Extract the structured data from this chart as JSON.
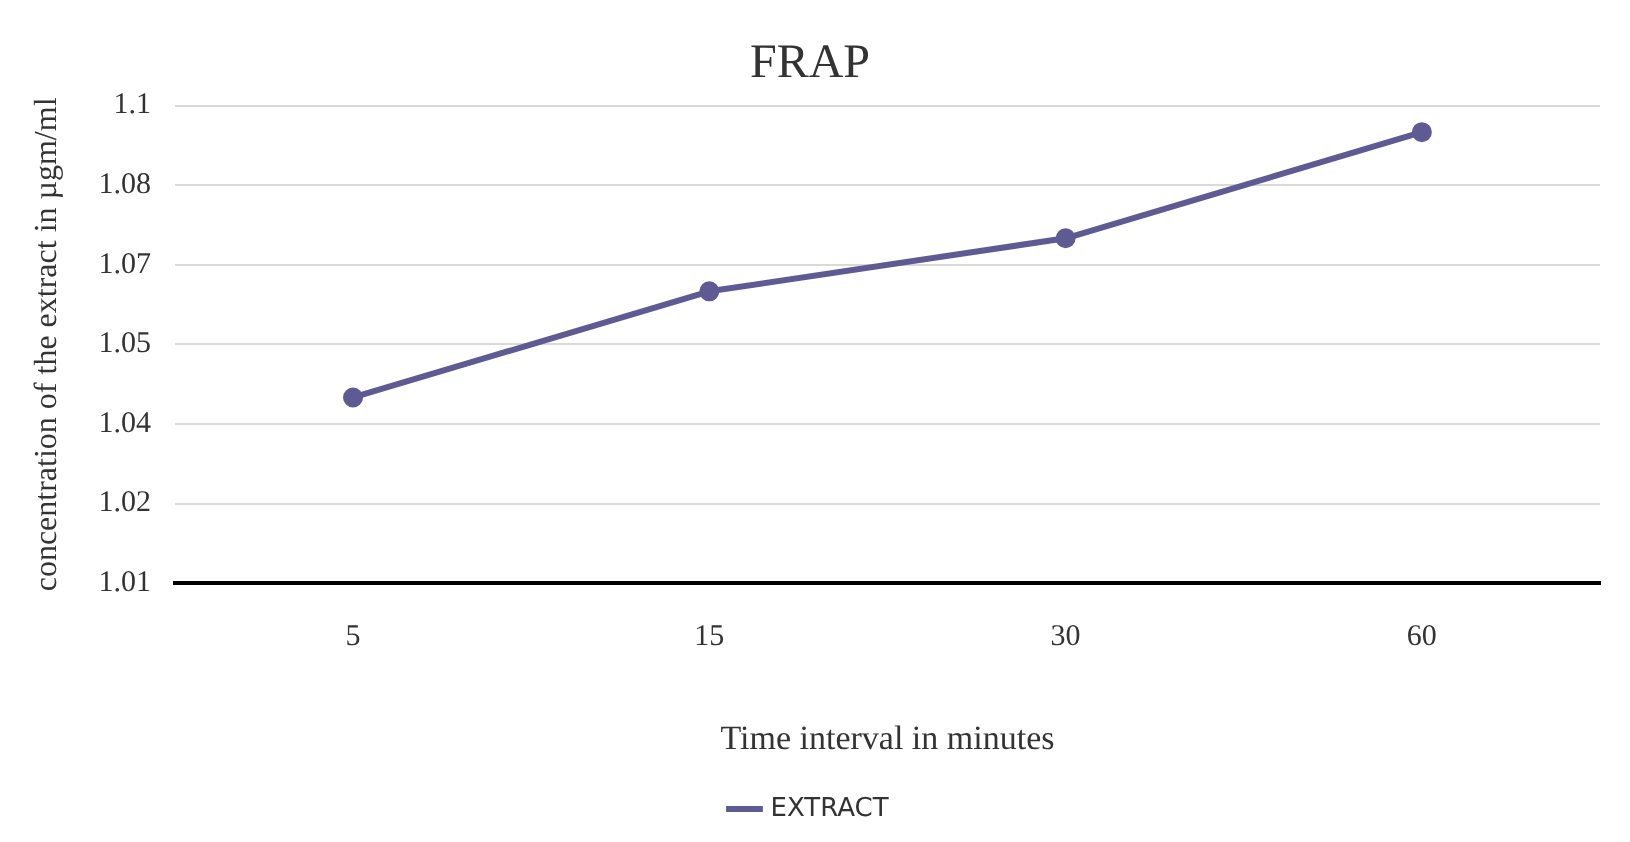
{
  "chart_data": {
    "type": "line",
    "title": "FRAP",
    "xlabel": "Time interval in minutes",
    "ylabel": "concentration of the extract in µgm/ml",
    "categories": [
      "5",
      "15",
      "30",
      "60"
    ],
    "series": [
      {
        "name": "EXTRACT",
        "color": "#5e5b94",
        "values": [
          1.045,
          1.065,
          1.075,
          1.095
        ]
      }
    ],
    "ylim": [
      1.01,
      1.1
    ],
    "yticks": [
      1.01,
      {
        "value": 1.025,
        "label": "1.02"
      },
      1.04,
      {
        "value": 1.055,
        "label": "1.05"
      },
      1.07,
      {
        "value": 1.085,
        "label": "1.08"
      },
      1.1
    ],
    "grid": "y",
    "legend": "bottom",
    "marker": "circle",
    "line_style": "solid"
  }
}
